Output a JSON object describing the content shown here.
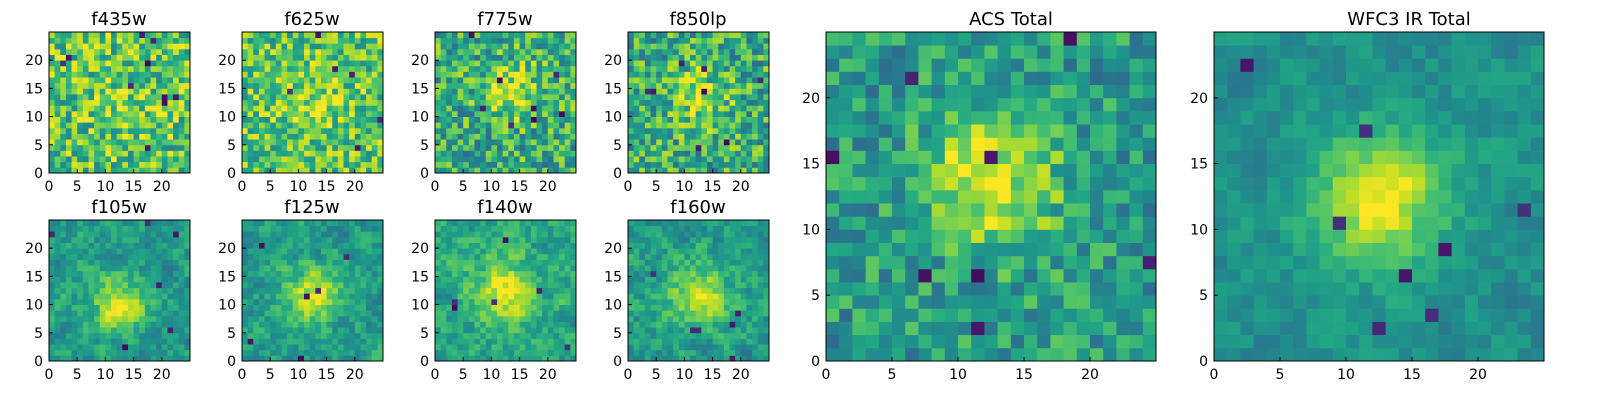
{
  "chart_data": {
    "type": "heatmap",
    "colormap": "viridis",
    "grid": false,
    "panels": [
      {
        "id": "f435w",
        "title": "f435w",
        "grid_size": 25,
        "xlim": [
          0,
          25
        ],
        "ylim": [
          0,
          25
        ],
        "xticks": [
          0,
          5,
          10,
          15,
          20
        ],
        "yticks": [
          0,
          5,
          10,
          15,
          20
        ],
        "seed": 11,
        "noise": 0.55,
        "base": 0.72,
        "peak": 0.08,
        "peak_center": [
          13,
          13
        ],
        "peak_sigma": 4.0,
        "smooth": 0,
        "dark_pixels": 10
      },
      {
        "id": "f625w",
        "title": "f625w",
        "grid_size": 25,
        "xlim": [
          0,
          25
        ],
        "ylim": [
          0,
          25
        ],
        "xticks": [
          0,
          5,
          10,
          15,
          20
        ],
        "yticks": [
          0,
          5,
          10,
          15,
          20
        ],
        "seed": 22,
        "noise": 0.5,
        "base": 0.72,
        "peak": 0.12,
        "peak_center": [
          12,
          12
        ],
        "peak_sigma": 4.5,
        "smooth": 0,
        "dark_pixels": 6
      },
      {
        "id": "f775w",
        "title": "f775w",
        "grid_size": 25,
        "xlim": [
          0,
          25
        ],
        "ylim": [
          0,
          25
        ],
        "xticks": [
          0,
          5,
          10,
          15,
          20
        ],
        "yticks": [
          0,
          5,
          10,
          15,
          20
        ],
        "seed": 33,
        "noise": 0.55,
        "base": 0.62,
        "peak": 0.28,
        "peak_center": [
          13,
          14
        ],
        "peak_sigma": 3.5,
        "smooth": 0,
        "dark_pixels": 8
      },
      {
        "id": "f850lp",
        "title": "f850lp",
        "grid_size": 25,
        "xlim": [
          0,
          25
        ],
        "ylim": [
          0,
          25
        ],
        "xticks": [
          0,
          5,
          10,
          15,
          20
        ],
        "yticks": [
          0,
          5,
          10,
          15,
          20
        ],
        "seed": 44,
        "noise": 0.55,
        "base": 0.62,
        "peak": 0.25,
        "peak_center": [
          12,
          13
        ],
        "peak_sigma": 3.5,
        "smooth": 0,
        "dark_pixels": 8
      },
      {
        "id": "f105w",
        "title": "f105w",
        "grid_size": 25,
        "xlim": [
          0,
          25
        ],
        "ylim": [
          0,
          25
        ],
        "xticks": [
          0,
          5,
          10,
          15,
          20
        ],
        "yticks": [
          0,
          5,
          10,
          15,
          20
        ],
        "seed": 55,
        "noise": 0.45,
        "base": 0.55,
        "peak": 0.35,
        "peak_center": [
          12,
          10
        ],
        "peak_sigma": 3.5,
        "smooth": 1,
        "dark_pixels": 6
      },
      {
        "id": "f125w",
        "title": "f125w",
        "grid_size": 25,
        "xlim": [
          0,
          25
        ],
        "ylim": [
          0,
          25
        ],
        "xticks": [
          0,
          5,
          10,
          15,
          20
        ],
        "yticks": [
          0,
          5,
          10,
          15,
          20
        ],
        "seed": 66,
        "noise": 0.45,
        "base": 0.55,
        "peak": 0.38,
        "peak_center": [
          12,
          11
        ],
        "peak_sigma": 3.5,
        "smooth": 1,
        "dark_pixels": 6
      },
      {
        "id": "f140w",
        "title": "f140w",
        "grid_size": 25,
        "xlim": [
          0,
          25
        ],
        "ylim": [
          0,
          25
        ],
        "xticks": [
          0,
          5,
          10,
          15,
          20
        ],
        "yticks": [
          0,
          5,
          10,
          15,
          20
        ],
        "seed": 77,
        "noise": 0.45,
        "base": 0.58,
        "peak": 0.35,
        "peak_center": [
          12,
          12
        ],
        "peak_sigma": 4.0,
        "smooth": 1,
        "dark_pixels": 6
      },
      {
        "id": "f160w",
        "title": "f160w",
        "grid_size": 25,
        "xlim": [
          0,
          25
        ],
        "ylim": [
          0,
          25
        ],
        "xticks": [
          0,
          5,
          10,
          15,
          20
        ],
        "yticks": [
          0,
          5,
          10,
          15,
          20
        ],
        "seed": 88,
        "noise": 0.45,
        "base": 0.55,
        "peak": 0.38,
        "peak_center": [
          12,
          11
        ],
        "peak_sigma": 3.5,
        "smooth": 1,
        "dark_pixels": 6
      },
      {
        "id": "acs-total",
        "title": "ACS Total",
        "grid_size": 25,
        "xlim": [
          0,
          25
        ],
        "ylim": [
          0,
          25
        ],
        "xticks": [
          0,
          5,
          10,
          15,
          20
        ],
        "yticks": [
          0,
          5,
          10,
          15,
          20
        ],
        "seed": 99,
        "noise": 0.4,
        "base": 0.55,
        "peak": 0.42,
        "peak_center": [
          12,
          13
        ],
        "peak_sigma": 3.5,
        "smooth": 0,
        "dark_pixels": 8
      },
      {
        "id": "wfc3-ir-total",
        "title": "WFC3 IR Total",
        "grid_size": 25,
        "xlim": [
          0,
          25
        ],
        "ylim": [
          0,
          25
        ],
        "xticks": [
          0,
          5,
          10,
          15,
          20
        ],
        "yticks": [
          0,
          5,
          10,
          15,
          20
        ],
        "seed": 123,
        "noise": 0.3,
        "base": 0.5,
        "peak": 0.48,
        "peak_center": [
          12,
          12
        ],
        "peak_sigma": 3.5,
        "smooth": 1,
        "dark_pixels": 8
      }
    ]
  }
}
